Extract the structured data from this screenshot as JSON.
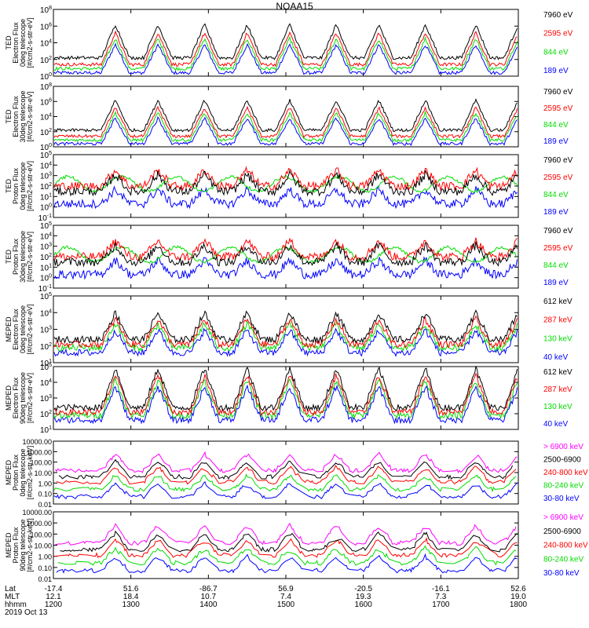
{
  "title": "NOAA15",
  "colors": {
    "blue": "#0000ff",
    "red": "#ff0000",
    "green": "#00dd00",
    "black": "#000000",
    "magenta": "#ff00ff"
  },
  "chart_data": [
    {
      "type": "scatter",
      "ylabel": [
        "TED",
        "Electron Flux",
        "0deg telescope",
        "[#/cm2-s-str-eV]"
      ],
      "y_ticks": [
        "10^0",
        "10^2",
        "10^4",
        "10^6",
        "10^8"
      ],
      "ylim_log": [
        0,
        8
      ],
      "series": [
        {
          "name": "7960 eV",
          "color": "#000000"
        },
        {
          "name": "2595 eV",
          "color": "#ff0000"
        },
        {
          "name": "844 eV",
          "color": "#00dd00"
        },
        {
          "name": "189 eV",
          "color": "#0000ff"
        }
      ]
    },
    {
      "type": "scatter",
      "ylabel": [
        "TED",
        "Electron Flux",
        "30deg telescope",
        "[#/cm2-s-str-eV]"
      ],
      "y_ticks": [
        "10^0",
        "10^2",
        "10^4",
        "10^6",
        "10^8"
      ],
      "ylim_log": [
        0,
        8
      ],
      "series": [
        {
          "name": "7960 eV",
          "color": "#000000"
        },
        {
          "name": "2595 eV",
          "color": "#ff0000"
        },
        {
          "name": "844 eV",
          "color": "#00dd00"
        },
        {
          "name": "189 eV",
          "color": "#0000ff"
        }
      ]
    },
    {
      "type": "scatter",
      "ylabel": [
        "TED",
        "Proton Flux",
        "0deg telescope",
        "[#/cm2-s-str-eV]"
      ],
      "y_ticks": [
        "10^-1",
        "10^0",
        "10^1",
        "10^2",
        "10^3",
        "10^4",
        "10^5"
      ],
      "ylim_log": [
        -1,
        5
      ],
      "series": [
        {
          "name": "7960 eV",
          "color": "#000000"
        },
        {
          "name": "2595 eV",
          "color": "#ff0000"
        },
        {
          "name": "844 eV",
          "color": "#00dd00"
        },
        {
          "name": "189 eV",
          "color": "#0000ff"
        }
      ]
    },
    {
      "type": "scatter",
      "ylabel": [
        "TED",
        "Proton Flux",
        "30deg telescope",
        "[#/cm2-s-str-eV]"
      ],
      "y_ticks": [
        "10^-1",
        "10^0",
        "10^1",
        "10^2",
        "10^3",
        "10^4",
        "10^5"
      ],
      "ylim_log": [
        -1,
        5
      ],
      "series": [
        {
          "name": "7960 eV",
          "color": "#000000"
        },
        {
          "name": "2595 eV",
          "color": "#ff0000"
        },
        {
          "name": "844 eV",
          "color": "#00dd00"
        },
        {
          "name": "189 eV",
          "color": "#0000ff"
        }
      ]
    },
    {
      "type": "scatter",
      "ylabel": [
        "MEPED",
        "Electron Flux",
        "0deg telescope",
        "[#/cm2-s-str-eV]"
      ],
      "y_ticks": [
        "10^1",
        "10^2",
        "10^3",
        "10^4",
        "10^5"
      ],
      "ylim_log": [
        1,
        5
      ],
      "series": [
        {
          "name": "612 keV",
          "color": "#000000"
        },
        {
          "name": "287 keV",
          "color": "#ff0000"
        },
        {
          "name": "130 keV",
          "color": "#00dd00"
        },
        {
          "name": "40 keV",
          "color": "#0000ff"
        }
      ]
    },
    {
      "type": "scatter",
      "ylabel": [
        "MEPED",
        "Electron Flux",
        "90deg telescope",
        "[#/cm2-s-str-eV]"
      ],
      "y_ticks": [
        "10^1",
        "10^2",
        "10^3",
        "10^4",
        "10^5"
      ],
      "ylim_log": [
        1,
        5
      ],
      "series": [
        {
          "name": "612 keV",
          "color": "#000000"
        },
        {
          "name": "287 keV",
          "color": "#ff0000"
        },
        {
          "name": "130 keV",
          "color": "#00dd00"
        },
        {
          "name": "40 keV",
          "color": "#0000ff"
        }
      ]
    },
    {
      "type": "scatter",
      "ylabel": [
        "MEPED",
        "Proton Flux",
        "0deg telescope",
        "[#/cm2-s-str-keV]"
      ],
      "y_ticks": [
        "0.01",
        "0.10",
        "1.00",
        "10.00",
        "100.00",
        "1000.00",
        "10000.00"
      ],
      "ylim_log": [
        -2,
        4
      ],
      "series": [
        {
          "name": "> 6900 keV",
          "color": "#ff00ff"
        },
        {
          "name": "2500-6900",
          "color": "#000000"
        },
        {
          "name": "240-800 keV",
          "color": "#ff0000"
        },
        {
          "name": "80-240 keV",
          "color": "#00dd00"
        },
        {
          "name": "30-80 keV",
          "color": "#0000ff"
        }
      ]
    },
    {
      "type": "scatter",
      "ylabel": [
        "MEPED",
        "Proton Flux",
        "90deg telescope",
        "[#/cm2-s-str-keV]"
      ],
      "y_ticks": [
        "0.01",
        "0.10",
        "1.00",
        "10.00",
        "100.00",
        "1000.00",
        "10000.00"
      ],
      "ylim_log": [
        -2,
        4
      ],
      "series": [
        {
          "name": "> 6900 keV",
          "color": "#ff00ff"
        },
        {
          "name": "2500-6900",
          "color": "#000000"
        },
        {
          "name": "240-800 keV",
          "color": "#ff0000"
        },
        {
          "name": "80-240 keV",
          "color": "#00dd00"
        },
        {
          "name": "30-80 keV",
          "color": "#0000ff"
        }
      ]
    }
  ],
  "xaxis": {
    "row_labels": [
      "Lat",
      "MLT",
      "hhmm"
    ],
    "columns": [
      {
        "lat": "-17.4",
        "mlt": "12.1",
        "hhmm": "1200"
      },
      {
        "lat": "51.6",
        "mlt": "18.4",
        "hhmm": "1300"
      },
      {
        "lat": "-86.7",
        "mlt": "10.7",
        "hhmm": "1400"
      },
      {
        "lat": "56.9",
        "mlt": "7.4",
        "hhmm": "1500"
      },
      {
        "lat": "-20.5",
        "mlt": "19.3",
        "hhmm": "1600"
      },
      {
        "lat": "-16.1",
        "mlt": "7.3",
        "hhmm": "1700"
      },
      {
        "lat": "52.6",
        "mlt": "19.0",
        "hhmm": "1800"
      }
    ],
    "date": "2019 Oct 13"
  }
}
